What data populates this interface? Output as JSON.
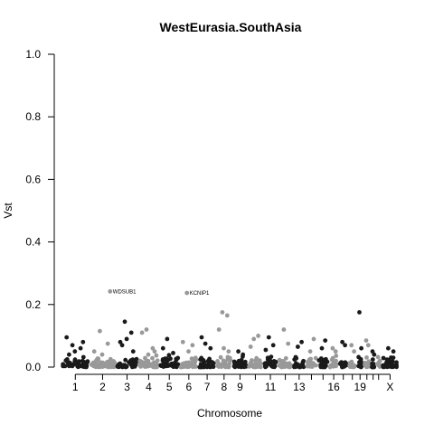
{
  "chart_data": {
    "type": "scatter",
    "title": "WestEurasia.SouthAsia",
    "xlabel": "Chromosome",
    "ylabel": "Vst",
    "ylim": [
      0,
      1
    ],
    "yticks": [
      "0.0",
      "0.2",
      "0.4",
      "0.6",
      "0.8",
      "1.0"
    ],
    "xticks": [
      "1",
      "2",
      "3",
      "4",
      "5",
      "6",
      "7",
      "8",
      "9",
      "11",
      "13",
      "16",
      "19",
      "X"
    ],
    "grid": false,
    "colors": {
      "odd": "#1a1a1a",
      "even": "#999999"
    },
    "chromosomes": [
      "1",
      "2",
      "3",
      "4",
      "5",
      "6",
      "7",
      "8",
      "9",
      "10",
      "11",
      "12",
      "13",
      "14",
      "15",
      "16",
      "17",
      "18",
      "19",
      "20",
      "21",
      "22",
      "X"
    ],
    "background_level": 0.02,
    "peaks": [
      {
        "chrom": "1",
        "y": 0.07
      },
      {
        "chrom": "1",
        "y": 0.06
      },
      {
        "chrom": "1",
        "y": 0.095
      },
      {
        "chrom": "1",
        "y": 0.05
      },
      {
        "chrom": "1",
        "y": 0.08
      },
      {
        "chrom": "1",
        "y": 0.04
      },
      {
        "chrom": "2",
        "y": 0.115
      },
      {
        "chrom": "2",
        "y": 0.075
      },
      {
        "chrom": "2",
        "y": 0.05
      },
      {
        "chrom": "2",
        "y": 0.04
      },
      {
        "chrom": "2",
        "y": 0.242
      },
      {
        "chrom": "3",
        "y": 0.145
      },
      {
        "chrom": "3",
        "y": 0.11
      },
      {
        "chrom": "3",
        "y": 0.08
      },
      {
        "chrom": "3",
        "y": 0.09
      },
      {
        "chrom": "3",
        "y": 0.05
      },
      {
        "chrom": "3",
        "y": 0.07
      },
      {
        "chrom": "4",
        "y": 0.12
      },
      {
        "chrom": "4",
        "y": 0.06
      },
      {
        "chrom": "4",
        "y": 0.11
      },
      {
        "chrom": "4",
        "y": 0.04
      },
      {
        "chrom": "4",
        "y": 0.05
      },
      {
        "chrom": "5",
        "y": 0.09
      },
      {
        "chrom": "5",
        "y": 0.045
      },
      {
        "chrom": "5",
        "y": 0.06
      },
      {
        "chrom": "6",
        "y": 0.237
      },
      {
        "chrom": "6",
        "y": 0.07
      },
      {
        "chrom": "6",
        "y": 0.08
      },
      {
        "chrom": "6",
        "y": 0.05
      },
      {
        "chrom": "7",
        "y": 0.075
      },
      {
        "chrom": "7",
        "y": 0.06
      },
      {
        "chrom": "7",
        "y": 0.095
      },
      {
        "chrom": "8",
        "y": 0.175
      },
      {
        "chrom": "8",
        "y": 0.165
      },
      {
        "chrom": "8",
        "y": 0.12
      },
      {
        "chrom": "8",
        "y": 0.06
      },
      {
        "chrom": "8",
        "y": 0.05
      },
      {
        "chrom": "9",
        "y": 0.05
      },
      {
        "chrom": "9",
        "y": 0.04
      },
      {
        "chrom": "10",
        "y": 0.09
      },
      {
        "chrom": "10",
        "y": 0.1
      },
      {
        "chrom": "10",
        "y": 0.065
      },
      {
        "chrom": "11",
        "y": 0.095
      },
      {
        "chrom": "11",
        "y": 0.07
      },
      {
        "chrom": "11",
        "y": 0.055
      },
      {
        "chrom": "12",
        "y": 0.12
      },
      {
        "chrom": "12",
        "y": 0.075
      },
      {
        "chrom": "13",
        "y": 0.065
      },
      {
        "chrom": "13",
        "y": 0.08
      },
      {
        "chrom": "14",
        "y": 0.05
      },
      {
        "chrom": "14",
        "y": 0.09
      },
      {
        "chrom": "15",
        "y": 0.06
      },
      {
        "chrom": "15",
        "y": 0.085
      },
      {
        "chrom": "16",
        "y": 0.06
      },
      {
        "chrom": "16",
        "y": 0.05
      },
      {
        "chrom": "17",
        "y": 0.08
      },
      {
        "chrom": "17",
        "y": 0.07
      },
      {
        "chrom": "18",
        "y": 0.07
      },
      {
        "chrom": "18",
        "y": 0.05
      },
      {
        "chrom": "19",
        "y": 0.175
      },
      {
        "chrom": "19",
        "y": 0.06
      },
      {
        "chrom": "20",
        "y": 0.085
      },
      {
        "chrom": "20",
        "y": 0.07
      },
      {
        "chrom": "21",
        "y": 0.05
      },
      {
        "chrom": "21",
        "y": 0.04
      },
      {
        "chrom": "X",
        "y": 0.06
      },
      {
        "chrom": "X",
        "y": 0.05
      }
    ],
    "annotations": [
      {
        "label": "WDSUB1",
        "chrom": "2",
        "y": 0.242
      },
      {
        "label": "KCNIP1",
        "chrom": "6",
        "y": 0.237
      }
    ]
  }
}
